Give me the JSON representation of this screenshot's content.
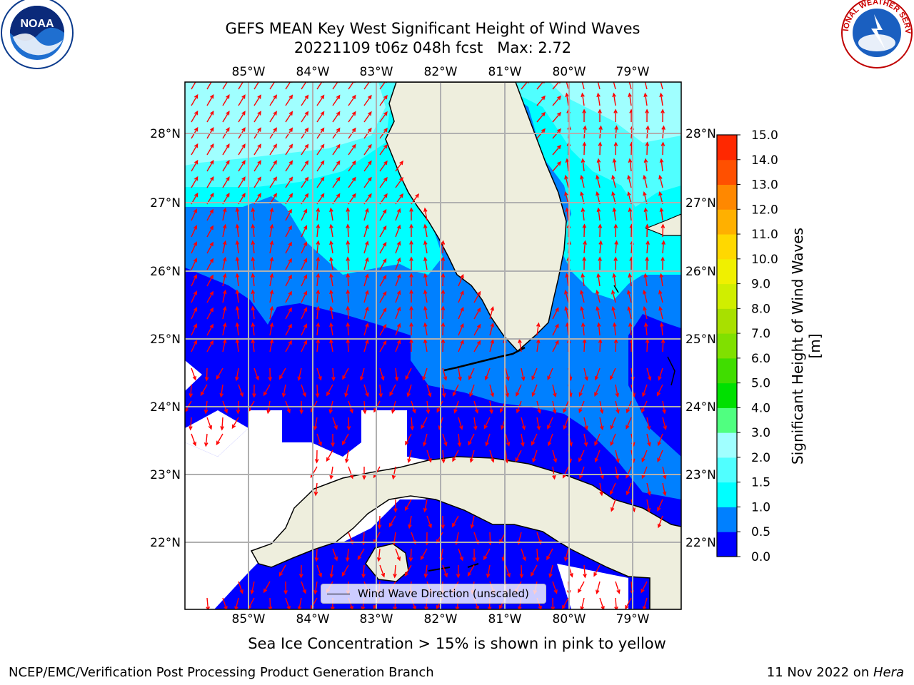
{
  "header": {
    "title": "GEFS MEAN Key West Significant Height of Wind Waves",
    "subtitle": "20221109 t06z 048h fcst   Max: 2.72"
  },
  "logos": {
    "left": "NOAA",
    "left_ring": "NATIONAL OCEANIC AND ATMOSPHERIC ADMINISTRATION · U.S. DEPARTMENT OF COMMERCE",
    "right": "NATIONAL WEATHER SERVICE"
  },
  "map": {
    "lon_labels": [
      "85°W",
      "84°W",
      "83°W",
      "82°W",
      "81°W",
      "80°W",
      "79°W"
    ],
    "lat_labels_left": [
      "28°N",
      "27°N",
      "26°N",
      "25°N",
      "24°N",
      "23°N",
      "22°N"
    ],
    "lat_labels_right": [
      "28°N",
      "27°N",
      "26°N",
      "25°N",
      "24°N",
      "23°N",
      "22°N"
    ],
    "legend_label": "Wind Wave Direction (unscaled)",
    "arrow_color": "#ff0000",
    "land_color": "#eeeedd"
  },
  "colorbar": {
    "label": "Significant Height of Wind Waves [m]",
    "ticks": [
      "0.0",
      "0.5",
      "1.0",
      "1.5",
      "2.0",
      "3.0",
      "4.0",
      "5.0",
      "6.0",
      "7.0",
      "8.0",
      "9.0",
      "10.0",
      "11.0",
      "12.0",
      "13.0",
      "14.0",
      "15.0"
    ],
    "colors": [
      "#0000ff",
      "#0080ff",
      "#00ffff",
      "#50ffff",
      "#a0ffff",
      "#50ff80",
      "#00e000",
      "#40dd00",
      "#80e000",
      "#a8e000",
      "#d0ee00",
      "#f0f000",
      "#ffd800",
      "#ffb000",
      "#ff8800",
      "#ff5000",
      "#ff2800"
    ]
  },
  "notes": {
    "ice": "Sea Ice Concentration > 15% is shown in pink to yellow",
    "footer_left": "NCEP/EMC/Verification Post Processing Product Generation Branch",
    "footer_date": "11 Nov 2022 on ",
    "footer_machine": "Hera"
  }
}
